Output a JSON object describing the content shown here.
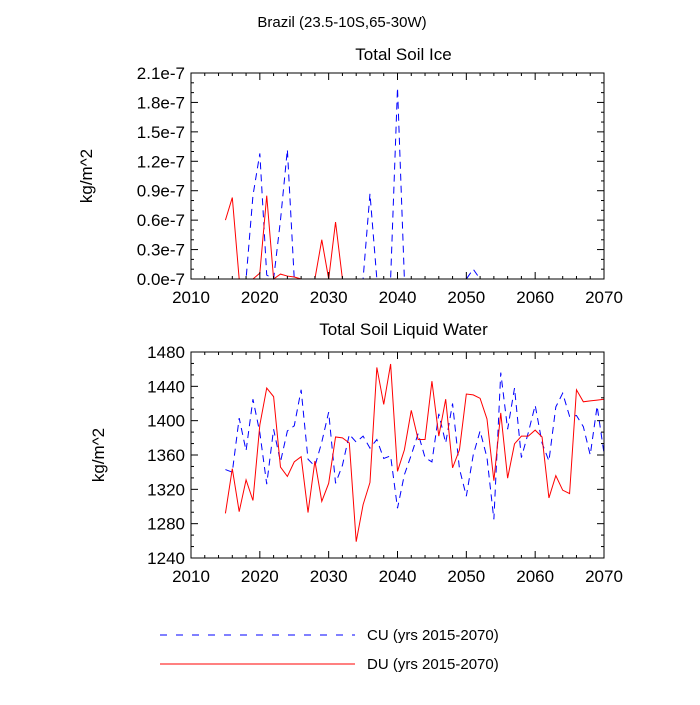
{
  "main_title": "Brazil (23.5-10S,65-30W)",
  "chart_data": [
    {
      "type": "line",
      "title": "Total Soil Ice",
      "xlabel": "",
      "ylabel": "kg/m^2",
      "xlim": [
        2010,
        2070
      ],
      "ylim": [
        0,
        2.1e-07
      ],
      "xticks": [
        2010,
        2020,
        2030,
        2040,
        2050,
        2060,
        2070
      ],
      "xtick_labels": [
        "2010",
        "2020",
        "2030",
        "2040",
        "2050",
        "2060",
        "2070"
      ],
      "yticks": [
        0,
        3e-08,
        6e-08,
        9e-08,
        1.2e-07,
        1.5e-07,
        1.8e-07,
        2.1e-07
      ],
      "ytick_labels": [
        "0.0e-7",
        "0.3e-7",
        "0.6e-7",
        "0.9e-7",
        "1.2e-7",
        "1.5e-7",
        "1.8e-7",
        "2.1e-7"
      ],
      "x": [
        2015,
        2016,
        2017,
        2018,
        2019,
        2020,
        2021,
        2022,
        2023,
        2024,
        2025,
        2026,
        2027,
        2028,
        2029,
        2030,
        2031,
        2032,
        2033,
        2034,
        2035,
        2036,
        2037,
        2038,
        2039,
        2040,
        2041,
        2042,
        2043,
        2044,
        2045,
        2046,
        2047,
        2048,
        2049,
        2050,
        2051,
        2052,
        2053,
        2054,
        2055,
        2056,
        2057,
        2058,
        2059,
        2060,
        2061,
        2062,
        2063,
        2064,
        2065,
        2066,
        2067,
        2068,
        2069,
        2070
      ],
      "series": [
        {
          "name": "CU (yrs 2015-2070)",
          "color": "#0000ff",
          "dash": true,
          "values": [
            0,
            0,
            0,
            0,
            8.5e-08,
            1.28e-07,
            4e-09,
            0,
            6e-08,
            1.32e-07,
            0,
            0,
            0,
            0,
            0,
            0,
            0,
            0,
            0,
            0,
            0,
            8.7e-08,
            0,
            0,
            0,
            1.95e-07,
            0,
            0,
            0,
            0,
            0,
            0,
            0,
            0,
            0,
            0,
            1e-08,
            0,
            0,
            0,
            0,
            0,
            0,
            0,
            0,
            0,
            0,
            0,
            0,
            0,
            0,
            0,
            0,
            0,
            0,
            0
          ]
        },
        {
          "name": "DU (yrs 2015-2070)",
          "color": "#ff0000",
          "dash": false,
          "values": [
            6e-08,
            8.3e-08,
            0,
            0,
            0,
            6e-09,
            8.5e-08,
            0,
            5e-09,
            3e-09,
            2e-09,
            0,
            0,
            0,
            4e-08,
            0,
            5.8e-08,
            0,
            0,
            0,
            0,
            0,
            0,
            0,
            0,
            0,
            0,
            0,
            0,
            0,
            0,
            0,
            0,
            0,
            0,
            0,
            0,
            0,
            0,
            0,
            0,
            0,
            0,
            0,
            0,
            0,
            0,
            0,
            0,
            0,
            0,
            0,
            0,
            0,
            0,
            0
          ]
        }
      ]
    },
    {
      "type": "line",
      "title": "Total Soil Liquid Water",
      "xlabel": "",
      "ylabel": "kg/m^2",
      "xlim": [
        2010,
        2070
      ],
      "ylim": [
        1240,
        1480
      ],
      "xticks": [
        2010,
        2020,
        2030,
        2040,
        2050,
        2060,
        2070
      ],
      "xtick_labels": [
        "2010",
        "2020",
        "2030",
        "2040",
        "2050",
        "2060",
        "2070"
      ],
      "yticks": [
        1240,
        1280,
        1320,
        1360,
        1400,
        1440,
        1480
      ],
      "ytick_labels": [
        "1240",
        "1280",
        "1320",
        "1360",
        "1400",
        "1440",
        "1480"
      ],
      "x": [
        2015,
        2016,
        2017,
        2018,
        2019,
        2020,
        2021,
        2022,
        2023,
        2024,
        2025,
        2026,
        2027,
        2028,
        2029,
        2030,
        2031,
        2032,
        2033,
        2034,
        2035,
        2036,
        2037,
        2038,
        2039,
        2040,
        2041,
        2042,
        2043,
        2044,
        2045,
        2046,
        2047,
        2048,
        2049,
        2050,
        2051,
        2052,
        2053,
        2054,
        2055,
        2056,
        2057,
        2058,
        2059,
        2060,
        2061,
        2062,
        2063,
        2064,
        2065,
        2066,
        2067,
        2068,
        2069,
        2070
      ],
      "series": [
        {
          "name": "CU (yrs 2015-2070)",
          "color": "#0000ff",
          "dash": true,
          "values": [
            1343,
            1340,
            1403,
            1365,
            1425,
            1386,
            1326,
            1390,
            1352,
            1388,
            1394,
            1436,
            1355,
            1347,
            1375,
            1410,
            1327,
            1348,
            1384,
            1375,
            1382,
            1368,
            1378,
            1356,
            1359,
            1298,
            1337,
            1360,
            1385,
            1357,
            1352,
            1408,
            1374,
            1420,
            1344,
            1312,
            1360,
            1388,
            1357,
            1285,
            1456,
            1390,
            1438,
            1357,
            1386,
            1418,
            1374,
            1353,
            1416,
            1432,
            1405,
            1406,
            1393,
            1360,
            1417,
            1362
          ]
        },
        {
          "name": "DU (yrs 2015-2070)",
          "color": "#ff0000",
          "dash": false,
          "values": [
            1292,
            1344,
            1294,
            1331,
            1307,
            1395,
            1438,
            1428,
            1346,
            1335,
            1352,
            1358,
            1293,
            1353,
            1306,
            1327,
            1381,
            1380,
            1374,
            1259,
            1302,
            1328,
            1462,
            1419,
            1466,
            1341,
            1366,
            1412,
            1378,
            1378,
            1446,
            1382,
            1425,
            1345,
            1366,
            1431,
            1430,
            1426,
            1402,
            1330,
            1409,
            1333,
            1373,
            1382,
            1382,
            1389,
            1381,
            1310,
            1336,
            1319,
            1315,
            1436,
            1422,
            1423,
            1424,
            1425
          ]
        }
      ]
    }
  ],
  "legend": [
    {
      "label": "CU (yrs 2015-2070)",
      "color": "#0000ff",
      "dash": true
    },
    {
      "label": "DU (yrs 2015-2070)",
      "color": "#ff0000",
      "dash": false
    }
  ]
}
